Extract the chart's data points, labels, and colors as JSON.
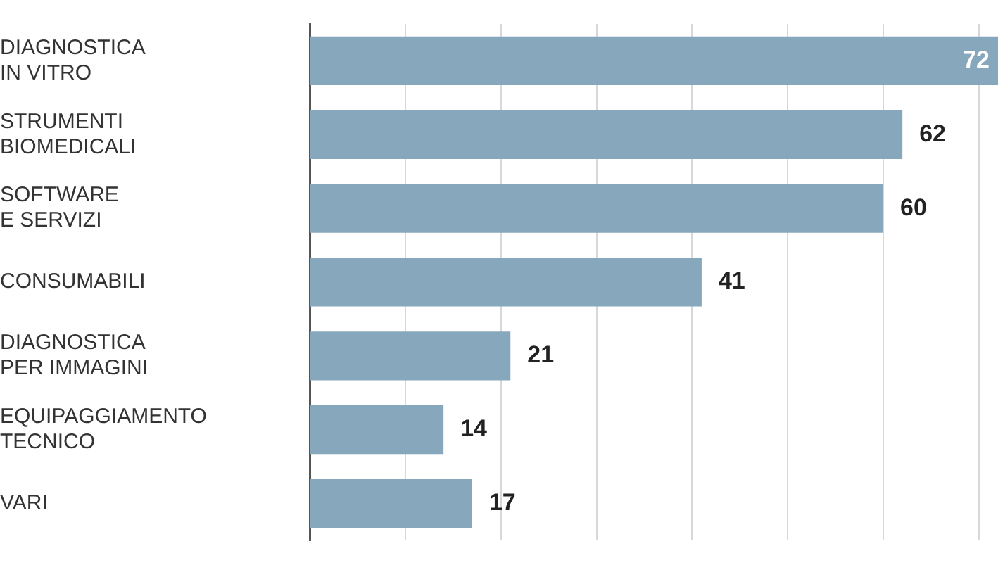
{
  "chart_data": {
    "type": "bar",
    "orientation": "horizontal",
    "categories": [
      "DIAGNOSTICA IN VITRO",
      "STRUMENTI BIOMEDICALI",
      "SOFTWARE E SERVIZI",
      "CONSUMABILI",
      "DIAGNOSTICA PER IMMAGINI",
      "EQUIPAGGIAMENTO TECNICO",
      "VARI"
    ],
    "values": [
      72,
      62,
      60,
      41,
      21,
      14,
      17
    ],
    "color": "#87a7bd",
    "xlim": [
      0,
      72
    ],
    "xticks": [
      {
        "value": 0,
        "label": null
      },
      {
        "value": 10,
        "label": null
      },
      {
        "value": 20,
        "label": null
      },
      {
        "value": 30,
        "label": null
      },
      {
        "value": 40,
        "label": null
      },
      {
        "value": 50,
        "label": null
      },
      {
        "value": 60,
        "label": null
      },
      {
        "value": 70,
        "label": null
      }
    ],
    "tick_labels": "y",
    "grid": "x",
    "data_labels": true
  }
}
